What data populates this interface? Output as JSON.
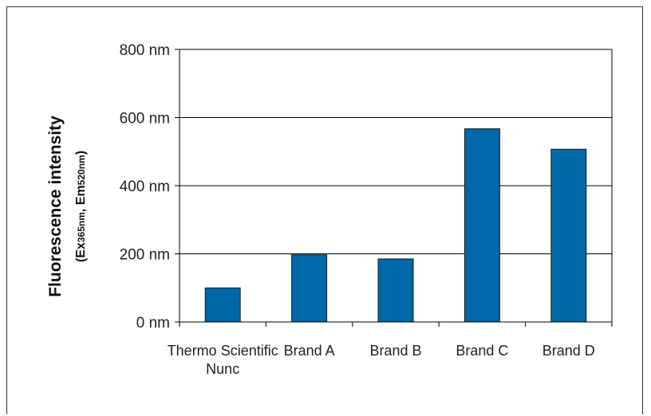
{
  "chart_data": {
    "type": "bar",
    "title": "",
    "ylabel": "Fluorescence intensity",
    "ylabel_sub": {
      "open": "(",
      "ex_prefix": "Ex",
      "ex_value": "365nm",
      "separator": ", ",
      "em_prefix": "Em",
      "em_value": "520nm",
      "close": ")"
    },
    "xlabel": "",
    "categories": [
      "Thermo Scientific Nunc",
      "Brand A",
      "Brand B",
      "Brand C",
      "Brand D"
    ],
    "category_lines": [
      [
        "Thermo Scientific",
        "Nunc"
      ],
      [
        "Brand A"
      ],
      [
        "Brand B"
      ],
      [
        "Brand C"
      ],
      [
        "Brand D"
      ]
    ],
    "values": [
      100,
      197,
      185,
      567,
      507
    ],
    "ylim": [
      0,
      800
    ],
    "yticks": [
      0,
      200,
      400,
      600,
      800
    ],
    "ytick_labels": [
      "0 nm",
      "200 nm",
      "400 nm",
      "600 nm",
      "800 nm"
    ],
    "grid": true,
    "bar_color": "#0067a8",
    "legend": null
  }
}
